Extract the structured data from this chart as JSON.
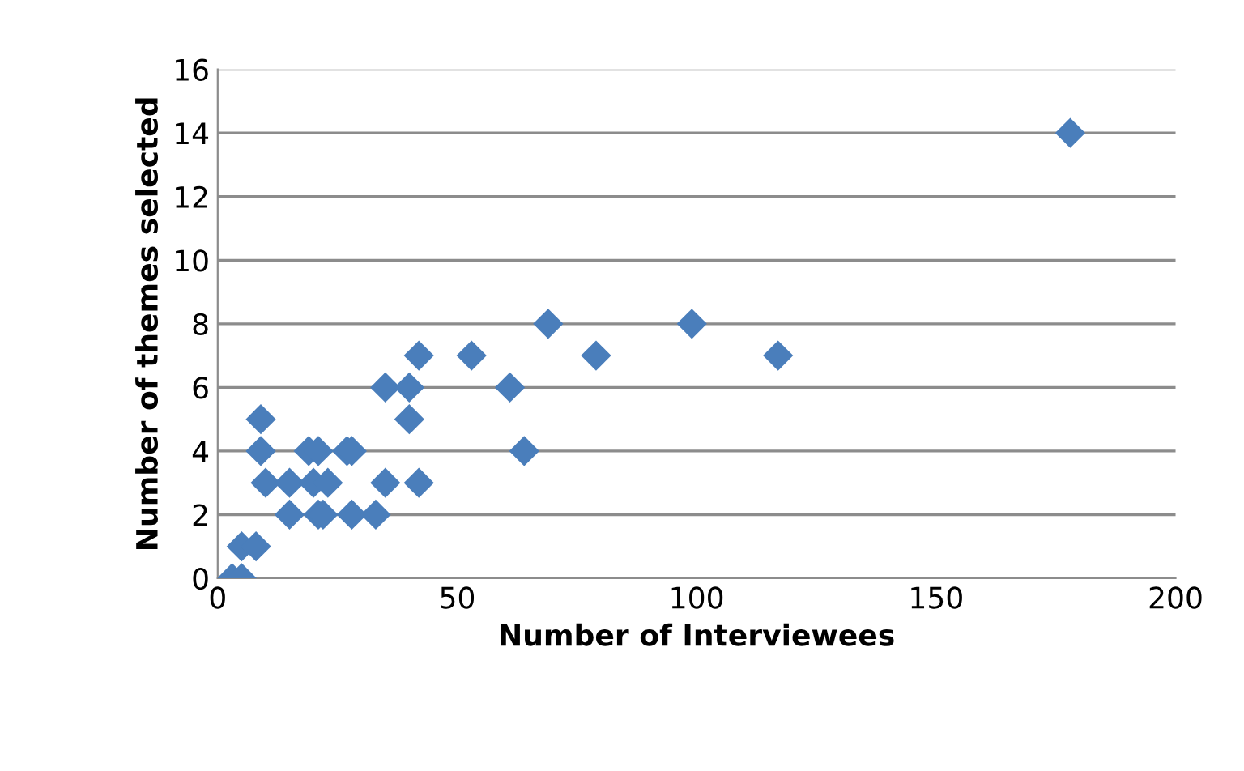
{
  "chart_data": {
    "type": "scatter",
    "xlabel": "Number of Interviewees",
    "ylabel": "Number of themes selected",
    "xlim": [
      0,
      200
    ],
    "xticks": [
      0,
      50,
      100,
      150,
      200
    ],
    "ylim": [
      0,
      16
    ],
    "yticks": [
      0,
      2,
      4,
      6,
      8,
      10,
      12,
      14,
      16
    ],
    "grid": "y",
    "marker": "diamond",
    "series": [
      {
        "color": "#4a7ebb",
        "x": [
          42,
          53,
          69,
          35,
          40,
          61,
          9,
          40,
          9,
          19,
          21,
          27,
          28,
          64,
          10,
          15,
          20,
          23,
          35,
          42,
          15,
          21,
          22,
          28,
          33,
          5,
          8,
          3,
          5,
          79,
          99,
          117,
          178
        ],
        "values": [
          7,
          7,
          8,
          6,
          6,
          6,
          5,
          5,
          4,
          4,
          4,
          4,
          4,
          4,
          3,
          3,
          3,
          3,
          3,
          3,
          2,
          2,
          2,
          2,
          2,
          1,
          1,
          0,
          0,
          7,
          8,
          7,
          14
        ]
      }
    ]
  }
}
